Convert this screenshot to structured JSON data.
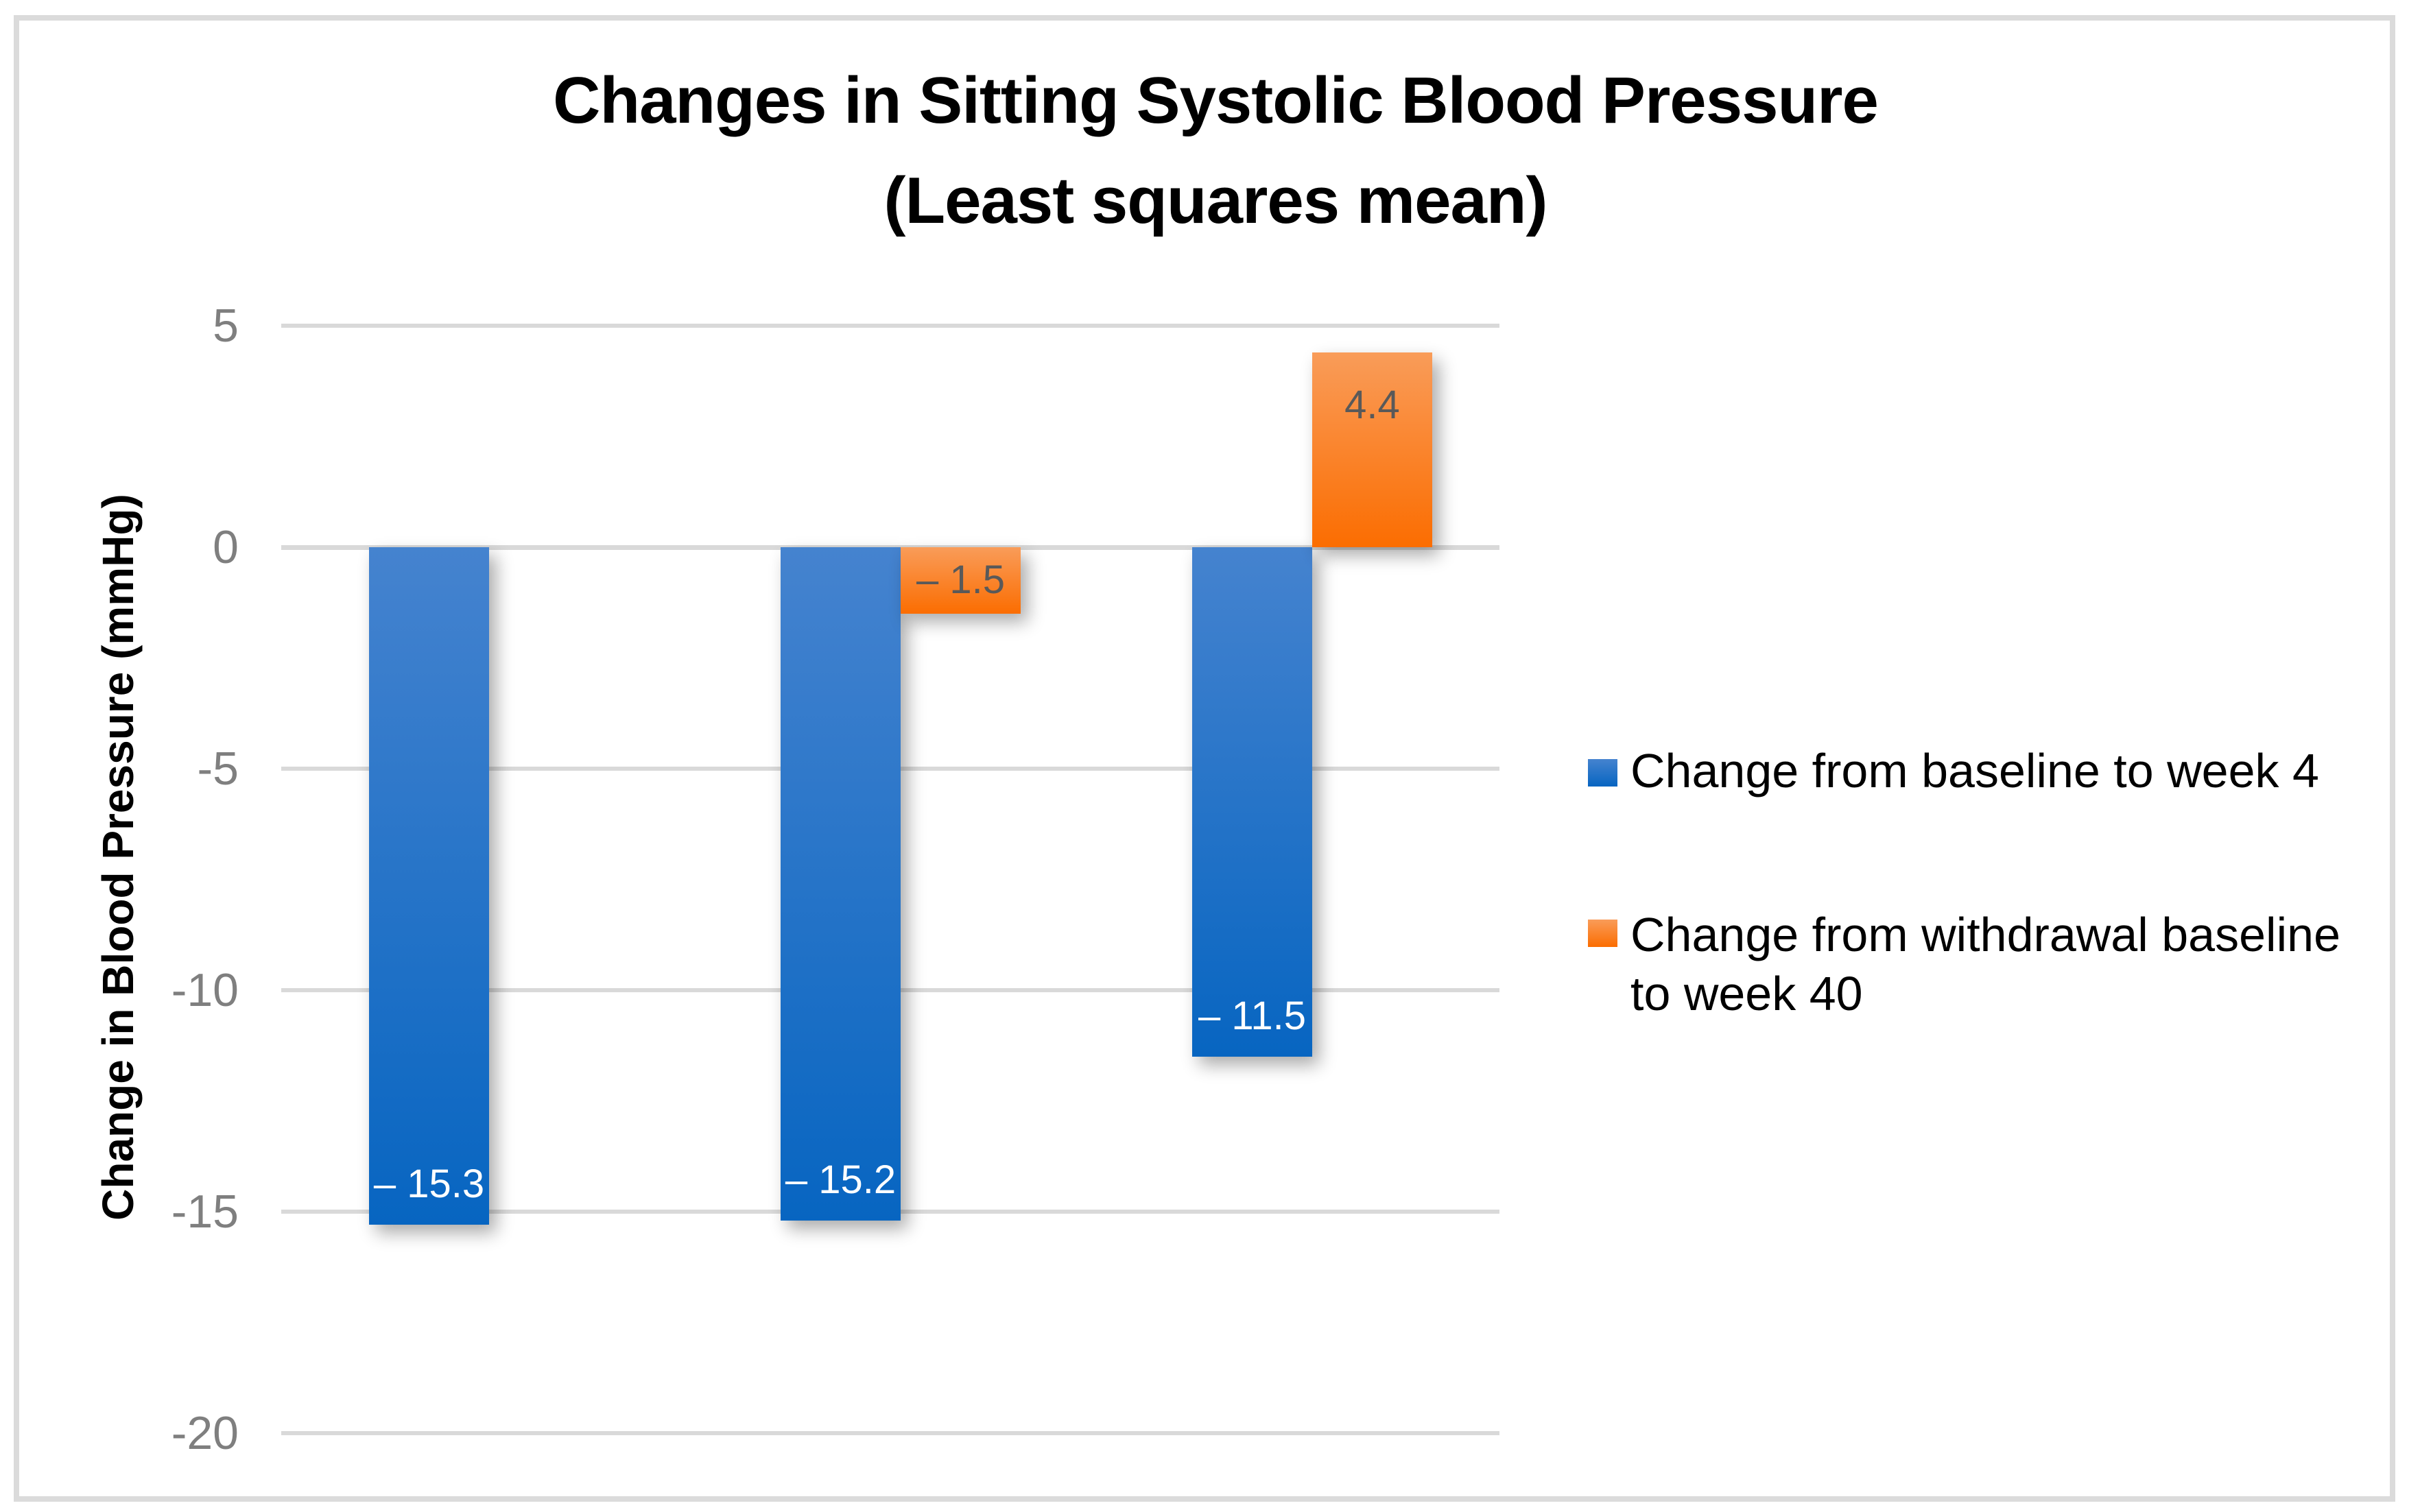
{
  "title": {
    "line1": "Changes in Sitting Systolic Blood Pressure",
    "line2": "(Least squares mean)"
  },
  "y_axis": {
    "title": "Change in Blood Pressure (mmHg)",
    "tick_labels": [
      "5",
      "0",
      "-5",
      "-10",
      "-15",
      "-20"
    ],
    "tick_color": "#7F7F7F",
    "gridline_color": "#D9D9D9"
  },
  "legend": {
    "items": [
      {
        "label": "Change from baseline to week 4",
        "label_lines": [
          "Change from baseline to week 4"
        ],
        "swatch_color_top": "#4583CF",
        "swatch_color_bottom": "#0765C1"
      },
      {
        "label": "Change from withdrawal baseline to week 40",
        "label_lines": [
          "Change from withdrawal baseline",
          "to week 40"
        ],
        "swatch_color_top": "#F99C59",
        "swatch_color_bottom": "#FB6D01"
      }
    ]
  },
  "frame_border_color": "#DBDBDB",
  "chart_data": {
    "type": "bar",
    "categories": [
      "",
      "",
      ""
    ],
    "series": [
      {
        "name": "Change from baseline to week 4",
        "values": [
          -15.3,
          -15.2,
          -11.5
        ],
        "data_labels": [
          "– 15.3",
          "– 15.2",
          "– 11.5"
        ],
        "label_color": "#FFFFFF",
        "color_top": "#4583CF",
        "color_bottom": "#0765C1"
      },
      {
        "name": "Change from withdrawal baseline to week 40",
        "values": [
          null,
          -1.5,
          4.4
        ],
        "data_labels": [
          null,
          "– 1.5",
          "4.4"
        ],
        "label_color": "#595959",
        "color_top": "#F99C59",
        "color_bottom": "#FB6D01"
      }
    ],
    "title": "Changes in Sitting Systolic Blood Pressure (Least squares mean)",
    "xlabel": "",
    "ylabel": "Change in Blood Pressure (mmHg)",
    "ylim": [
      -20,
      5
    ],
    "yticks": [
      5,
      0,
      -5,
      -10,
      -15,
      -20
    ],
    "grid": true,
    "legend_position": "right"
  }
}
